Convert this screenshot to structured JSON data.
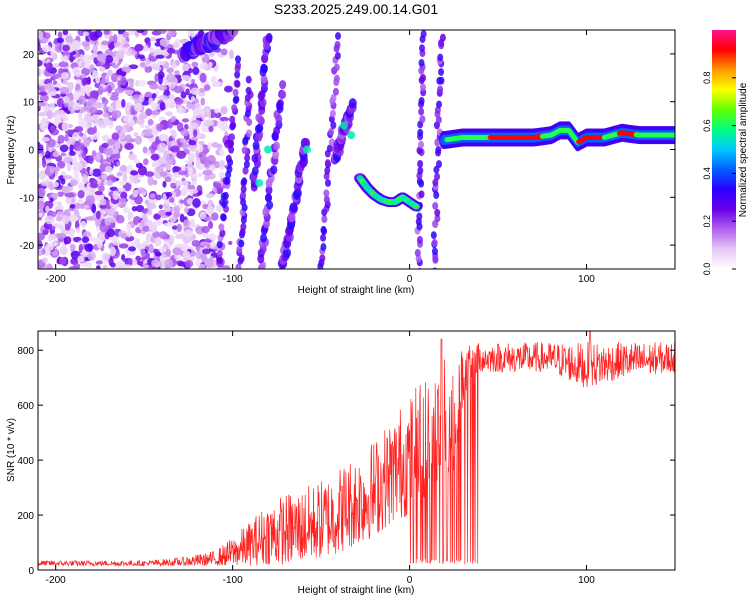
{
  "chart_data": [
    {
      "type": "heatmap",
      "title": "S233.2025.249.00.14.G01",
      "xlabel": "Height of straight line (km)",
      "ylabel": "Frequency (Hz)",
      "xlim": [
        -210,
        150
      ],
      "ylim": [
        -25,
        25
      ],
      "xticks": [
        -200,
        -100,
        0,
        100
      ],
      "yticks": [
        -20,
        -10,
        0,
        10,
        20
      ],
      "colorbar": {
        "label": "Normalized spectral amplitude",
        "range": [
          0,
          1
        ],
        "ticks": [
          0.0,
          0.2,
          0.4,
          0.6,
          0.8
        ],
        "colormap": [
          "#ffffff",
          "#e6c8f5",
          "#b060ee",
          "#6a00e8",
          "#2a00ff",
          "#0060ff",
          "#00c8ff",
          "#00ff80",
          "#60ff00",
          "#ffff00",
          "#ff9a00",
          "#ff0000",
          "#ff1090"
        ]
      },
      "ridge": {
        "description_points_x": [
          20,
          30,
          40,
          50,
          60,
          70,
          80,
          85,
          90,
          95,
          100,
          105,
          110,
          115,
          120,
          130,
          140,
          150
        ],
        "frequency": [
          2,
          2.5,
          2.5,
          2.5,
          2.5,
          2.5,
          3,
          4,
          4,
          1.5,
          2.5,
          2.5,
          2.5,
          3,
          3.5,
          3,
          3,
          3
        ]
      },
      "arc": {
        "x": [
          -28,
          -24,
          -20,
          -16,
          -12,
          -8,
          -4,
          0,
          4
        ],
        "frequency": [
          -6,
          -8,
          -9.5,
          -10.5,
          -11,
          -11,
          -10,
          -11,
          -12
        ]
      }
    },
    {
      "type": "line",
      "title": "",
      "xlabel": "Height of straight line (km)",
      "ylabel": "SNR (10 * v/v)",
      "xlim": [
        -210,
        150
      ],
      "ylim": [
        0,
        870
      ],
      "xticks": [
        -200,
        -100,
        0,
        100
      ],
      "yticks": [
        0,
        200,
        400,
        600,
        800
      ],
      "series_color": "#ff2020",
      "envelope": {
        "x": [
          -210,
          -150,
          -130,
          -110,
          -100,
          -90,
          -80,
          -70,
          -60,
          -50,
          -40,
          -30,
          -20,
          -10,
          0,
          10,
          20,
          25,
          30,
          35,
          40,
          60,
          80,
          100,
          120,
          150
        ],
        "max": [
          35,
          35,
          45,
          70,
          120,
          180,
          250,
          280,
          300,
          330,
          380,
          430,
          480,
          560,
          650,
          730,
          780,
          800,
          810,
          820,
          830,
          830,
          830,
          830,
          830,
          830
        ],
        "min": [
          15,
          15,
          15,
          15,
          15,
          15,
          20,
          20,
          30,
          40,
          60,
          90,
          120,
          170,
          200,
          240,
          300,
          350,
          600,
          700,
          720,
          720,
          720,
          660,
          700,
          720
        ],
        "notes": "Dropouts to ~20 between x=0 and x=40; spikes to ~840 near x=18 and ~870 near x=102"
      }
    }
  ]
}
